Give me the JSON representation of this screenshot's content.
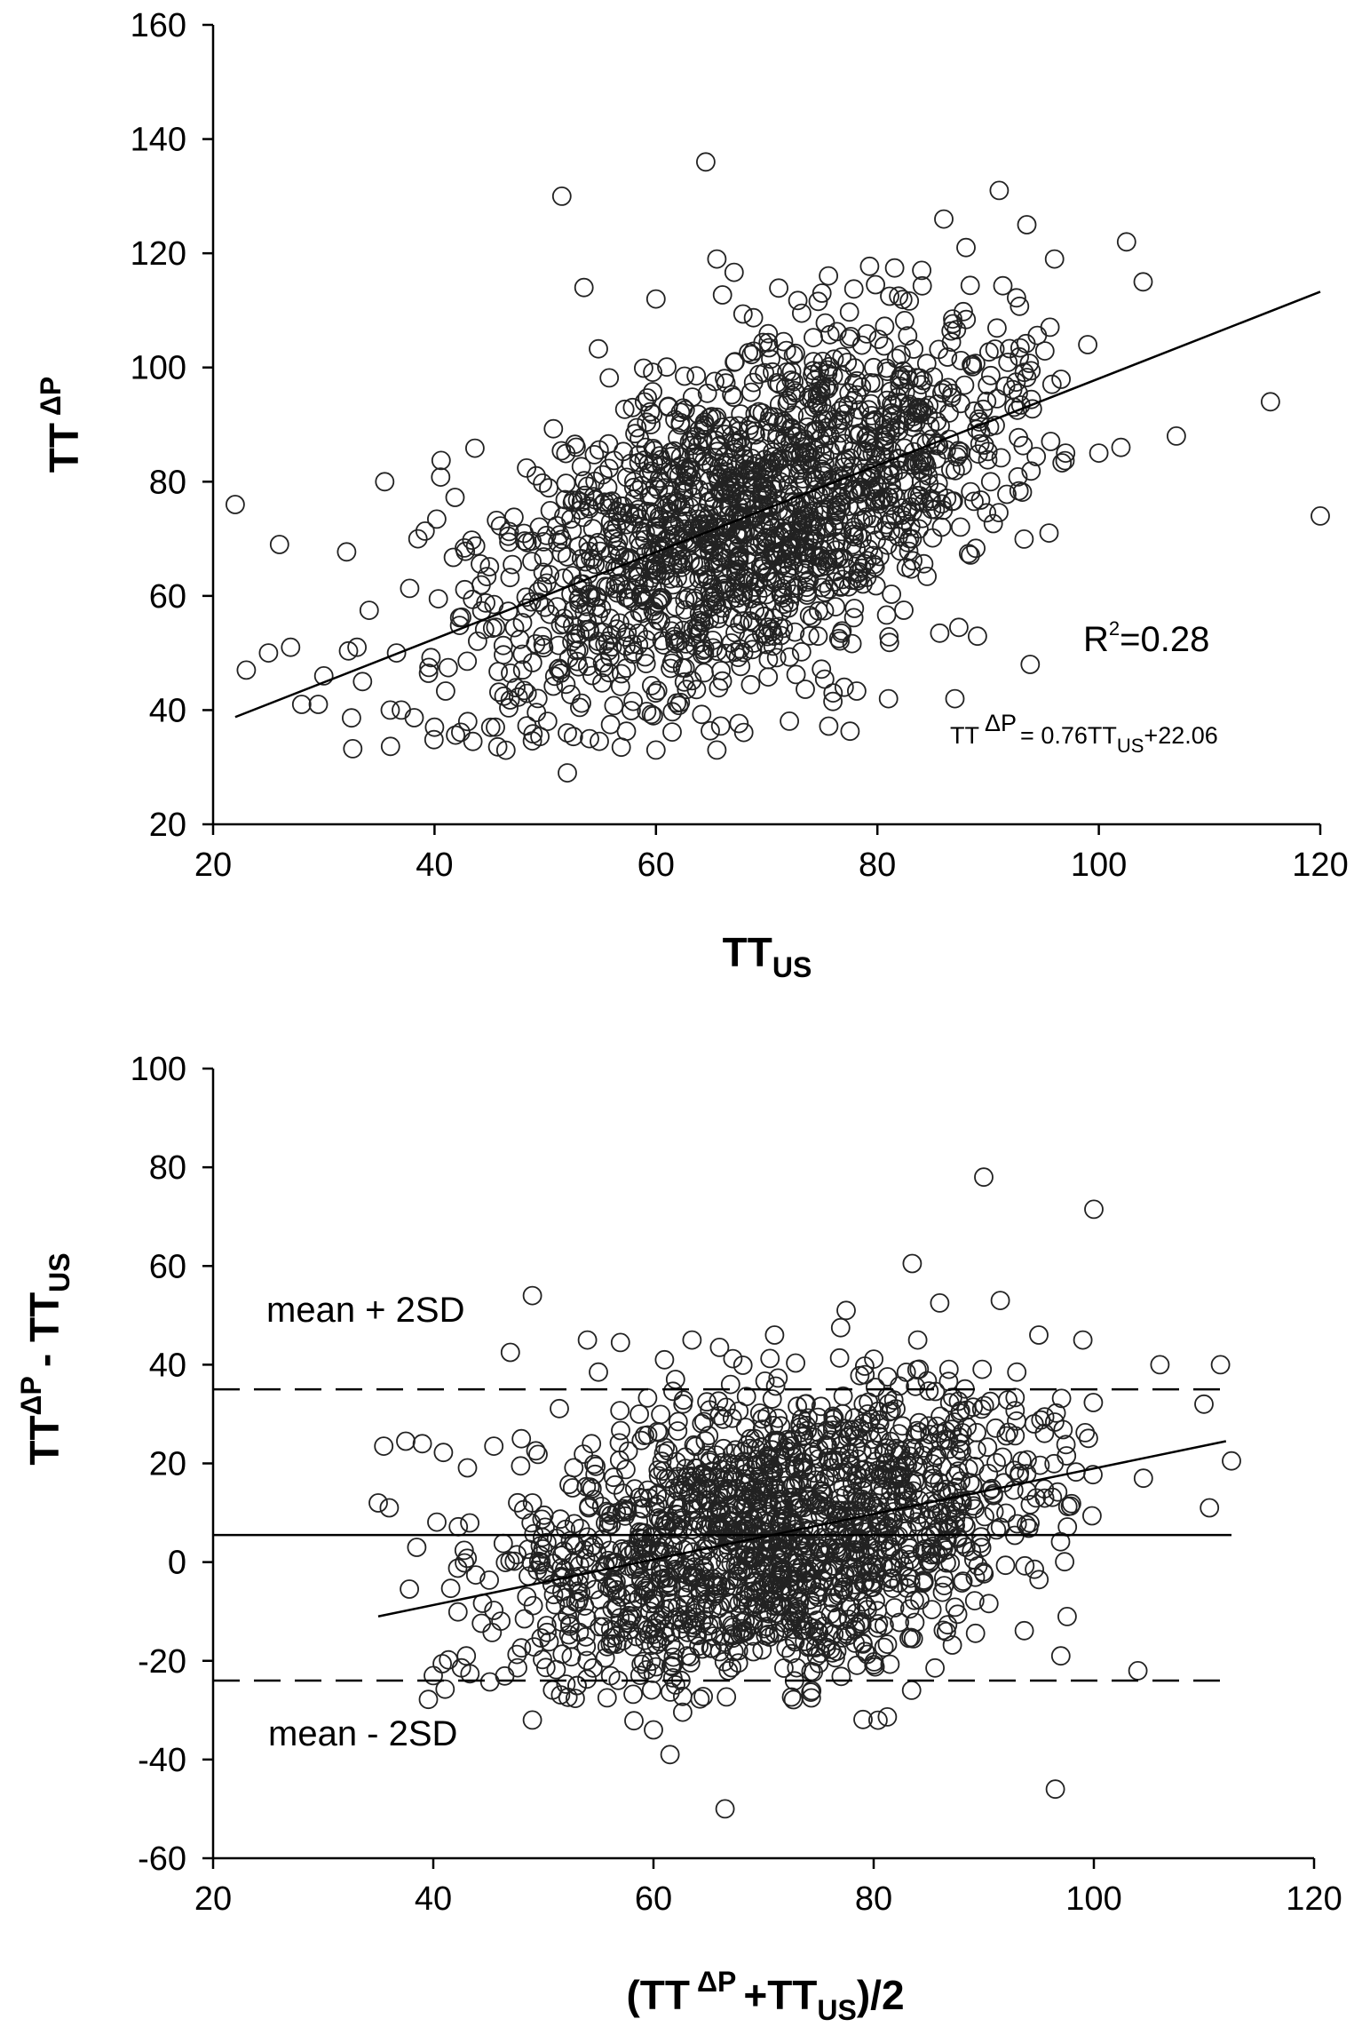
{
  "chart_data": [
    {
      "type": "scatter",
      "title": "",
      "xlabel": "TT_US",
      "ylabel": "TT^ΔP",
      "xlim": [
        20,
        120
      ],
      "ylim": [
        20,
        160
      ],
      "xticks": [
        20,
        40,
        60,
        80,
        100,
        120
      ],
      "yticks": [
        20,
        40,
        60,
        80,
        100,
        120,
        140,
        160
      ],
      "tick_labels_x": [
        "20",
        "40",
        "60",
        "80",
        "100",
        "120"
      ],
      "tick_labels_y": [
        "20",
        "40",
        "60",
        "80",
        "100",
        "120",
        "140",
        "160"
      ],
      "grid": false,
      "labels": {
        "xlabel_main": "TT",
        "xlabel_sub": "US",
        "ylabel_main": "TT",
        "ylabel_sup": "ΔP"
      },
      "annotations": {
        "r2_prefix": "R",
        "r2_sup": "2",
        "r2_suffix": "=0.28",
        "eq_part1": "TT",
        "eq_sup": "ΔP",
        "eq_part2": "= 0.76TT",
        "eq_sub": "US",
        "eq_part3": "+22.06"
      },
      "regression": {
        "slope": 0.76,
        "intercept": 22.06,
        "x_range": [
          22,
          120
        ]
      },
      "point_cloud": {
        "count": 1650,
        "mean_x": 68.5,
        "sd_x": 12.5,
        "mean_y": 74.1,
        "sd_y": 17.5,
        "r": 0.53
      },
      "outliers": [
        [
          22,
          76
        ],
        [
          23,
          47
        ],
        [
          26,
          69
        ],
        [
          25,
          50
        ],
        [
          27,
          51
        ],
        [
          28,
          41
        ],
        [
          29.5,
          41
        ],
        [
          30,
          46
        ],
        [
          33,
          51
        ],
        [
          33.5,
          45
        ],
        [
          35.5,
          80
        ],
        [
          36,
          40
        ],
        [
          37,
          40
        ],
        [
          38.5,
          70
        ],
        [
          40,
          37
        ],
        [
          43,
          38
        ],
        [
          45.5,
          37
        ],
        [
          51.5,
          130
        ],
        [
          52,
          29
        ],
        [
          52,
          36
        ],
        [
          53.5,
          114
        ],
        [
          54,
          35
        ],
        [
          60,
          33
        ],
        [
          60,
          112
        ],
        [
          64.5,
          136
        ],
        [
          65.5,
          33
        ],
        [
          65.5,
          119
        ],
        [
          76,
          43
        ],
        [
          77,
          44
        ],
        [
          81,
          42
        ],
        [
          84,
          117
        ],
        [
          86,
          126
        ],
        [
          87,
          42
        ],
        [
          88,
          121
        ],
        [
          91,
          131
        ],
        [
          93.5,
          125
        ],
        [
          95.5,
          71
        ],
        [
          96,
          119
        ],
        [
          97,
          85
        ],
        [
          99,
          104
        ],
        [
          100,
          85
        ],
        [
          102,
          86
        ],
        [
          102.5,
          122
        ],
        [
          104,
          115
        ],
        [
          107,
          88
        ],
        [
          115.5,
          94
        ],
        [
          120,
          74
        ]
      ]
    },
    {
      "type": "scatter",
      "title": "",
      "xlabel": "(TT^ΔP +TT_US)/2",
      "ylabel": "TT^ΔP - TT_US",
      "xlim": [
        20,
        120
      ],
      "ylim": [
        -60,
        100
      ],
      "xticks": [
        20,
        40,
        60,
        80,
        100,
        120
      ],
      "yticks": [
        -60,
        -40,
        -20,
        0,
        20,
        40,
        60,
        80,
        100
      ],
      "tick_labels_x": [
        "20",
        "40",
        "60",
        "80",
        "100",
        "120"
      ],
      "tick_labels_y": [
        "-60",
        "-40",
        "-20",
        "0",
        "20",
        "40",
        "60",
        "80",
        "100"
      ],
      "grid": false,
      "labels": {
        "xlabel_open": "(TT",
        "xlabel_sup": "ΔP",
        "xlabel_mid": "+TT",
        "xlabel_sub": "US",
        "xlabel_close": ")/2",
        "ylabel_a": "TT",
        "ylabel_sup": "ΔP",
        "ylabel_b": "- TT",
        "ylabel_sub": "US"
      },
      "annotations": {
        "upper_label": "mean + 2SD",
        "lower_label": "mean - 2SD"
      },
      "mean_line": 5.5,
      "upper_limit": 35.0,
      "lower_limit": -24.0,
      "trend": {
        "x_range": [
          35,
          112
        ],
        "y_range": [
          -11,
          24.5
        ]
      },
      "point_cloud": {
        "count": 1650,
        "mean_x": 71,
        "sd_x": 12,
        "mean_y": 5.5,
        "sd_y": 14.7,
        "slope": 0.46
      },
      "outliers": [
        [
          35,
          12
        ],
        [
          36,
          11
        ],
        [
          35.5,
          23.5
        ],
        [
          37.5,
          24.5
        ],
        [
          39,
          24
        ],
        [
          38.5,
          3
        ],
        [
          40,
          -23
        ],
        [
          43,
          -19
        ],
        [
          45.5,
          23.5
        ],
        [
          47,
          42.5
        ],
        [
          48,
          25
        ],
        [
          49,
          54
        ],
        [
          49,
          -32
        ],
        [
          54,
          45
        ],
        [
          55,
          38.5
        ],
        [
          57,
          44.5
        ],
        [
          60,
          -34
        ],
        [
          61,
          41
        ],
        [
          61.5,
          -39
        ],
        [
          62,
          37
        ],
        [
          63.5,
          45
        ],
        [
          66,
          43.5
        ],
        [
          66.5,
          -50
        ],
        [
          67,
          36
        ],
        [
          71,
          46
        ],
        [
          77,
          47.5
        ],
        [
          77.5,
          51
        ],
        [
          83.5,
          60.5
        ],
        [
          84,
          45
        ],
        [
          86,
          52.5
        ],
        [
          90,
          78
        ],
        [
          91.5,
          53
        ],
        [
          93,
          38.5
        ],
        [
          95,
          46
        ],
        [
          96.5,
          -46
        ],
        [
          97,
          -19
        ],
        [
          99,
          45
        ],
        [
          100,
          71.5
        ],
        [
          104,
          -22
        ],
        [
          104.5,
          17
        ],
        [
          106,
          40
        ],
        [
          110,
          32
        ],
        [
          110.5,
          11
        ],
        [
          111.5,
          40
        ],
        [
          112.5,
          20.5
        ]
      ]
    }
  ]
}
